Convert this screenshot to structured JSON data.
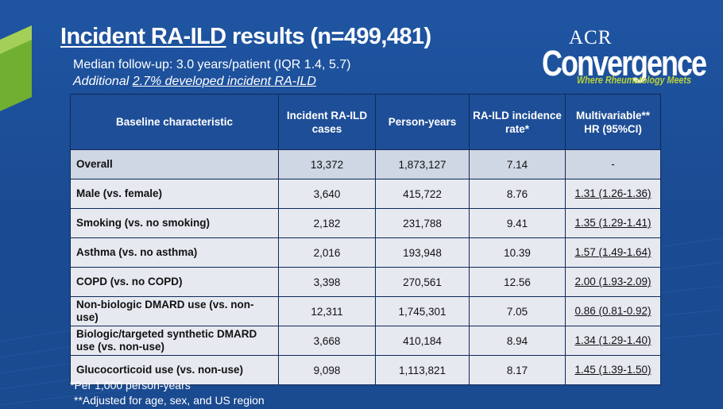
{
  "title": "Incident RA-ILD results (n=499,481)",
  "title_underlined": "Incident RA-ILD",
  "title_rest": " results (n=499,481)",
  "subtitle": "Median follow-up: 3.0 years/patient (IQR 1.4, 5.7)",
  "subtitle2_prefix": "Additional ",
  "subtitle2_highlight": "2.7% developed incident RA-ILD",
  "logo": {
    "acr": "ACR",
    "convergence": "Convergence",
    "tagline": "Where Rheumatology Meets"
  },
  "table": {
    "headers": [
      "Baseline characteristic",
      "Incident RA-ILD cases",
      "Person-years",
      "RA-ILD incidence rate*",
      "Multivariable** HR (95%CI)"
    ],
    "rows": [
      [
        "Overall",
        "13,372",
        "1,873,127",
        "7.14",
        "-"
      ],
      [
        "Male (vs. female)",
        "3,640",
        "415,722",
        "8.76",
        "1.31 (1.26-1.36)"
      ],
      [
        "Smoking (vs. no smoking)",
        "2,182",
        "231,788",
        "9.41",
        "1.35 (1.29-1.41)"
      ],
      [
        "Asthma (vs. no asthma)",
        "2,016",
        "193,948",
        "10.39",
        "1.57 (1.49-1.64)"
      ],
      [
        "COPD (vs. no COPD)",
        "3,398",
        "270,561",
        "12.56",
        "2.00 (1.93-2.09)"
      ],
      [
        "Non-biologic DMARD use (vs. non-use)",
        "12,311",
        "1,745,301",
        "7.05",
        "0.86 (0.81-0.92)"
      ],
      [
        "Biologic/targeted synthetic DMARD use (vs. non-use)",
        "3,668",
        "410,184",
        "8.94",
        "1.34 (1.29-1.40)"
      ],
      [
        "Glucocorticoid use (vs. non-use)",
        "9,098",
        "1,113,821",
        "8.17",
        "1.45 (1.39-1.50)"
      ]
    ]
  },
  "footnotes": [
    "*Per 1,000 person-years",
    "**Adjusted for age, sex, and US region"
  ],
  "colors": {
    "background": "#1c4c93",
    "header": "#1e4e97",
    "row": "#e6e9f0",
    "accent_green": "#b7d13a"
  }
}
